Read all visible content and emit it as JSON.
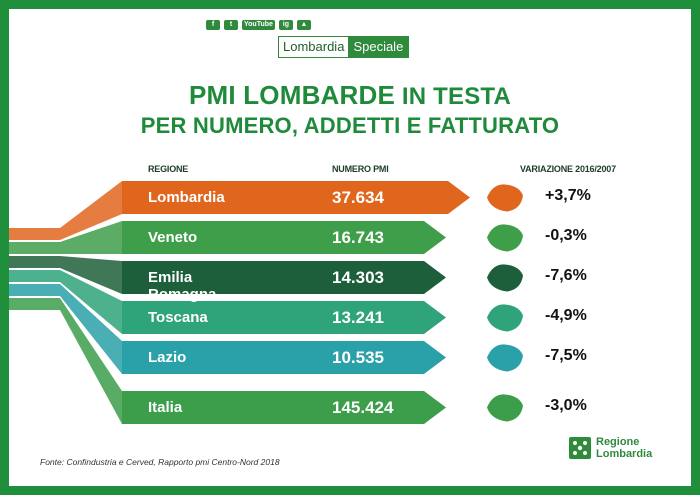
{
  "header": {
    "social": [
      "f",
      "t",
      "YouTube",
      "ig",
      "▲"
    ],
    "logo_left": "Lombardia",
    "logo_right": "Speciale",
    "title_line1_bold": "PMI LOMBARDE",
    "title_line1_rest": " IN TESTA",
    "title_line2": "PER NUMERO, ADDETTI E FATTURATO"
  },
  "columns": {
    "region": "REGIONE",
    "count": "NUMERO PMI",
    "variation": "VARIAZIONE 2016/2007"
  },
  "chart_data": {
    "type": "table",
    "columns": [
      "REGIONE",
      "NUMERO PMI",
      "VARIAZIONE 2016/2007"
    ],
    "rows": [
      {
        "region": "Lombardia",
        "count": "37.634",
        "variation": "+3,7%",
        "color": "#e0661e"
      },
      {
        "region": "Veneto",
        "count": "16.743",
        "variation": "-0,3%",
        "color": "#3f9e4a"
      },
      {
        "region": "Emilia Romagna",
        "count": "14.303",
        "variation": "-7,6%",
        "color": "#1d5f3a"
      },
      {
        "region": "Toscana",
        "count": "13.241",
        "variation": "-4,9%",
        "color": "#2fa37a"
      },
      {
        "region": "Lazio",
        "count": "10.535",
        "variation": "-7,5%",
        "color": "#2aa0a8"
      },
      {
        "region": "Italia",
        "count": "145.424",
        "variation": "-3,0%",
        "color": "#3c9e4a"
      }
    ]
  },
  "footer": {
    "source": "Fonte: Confindustria e Cerved, Rapporto pmi Centro-Nord 2018",
    "brand_line1": "Regione",
    "brand_line2": "Lombardia"
  }
}
